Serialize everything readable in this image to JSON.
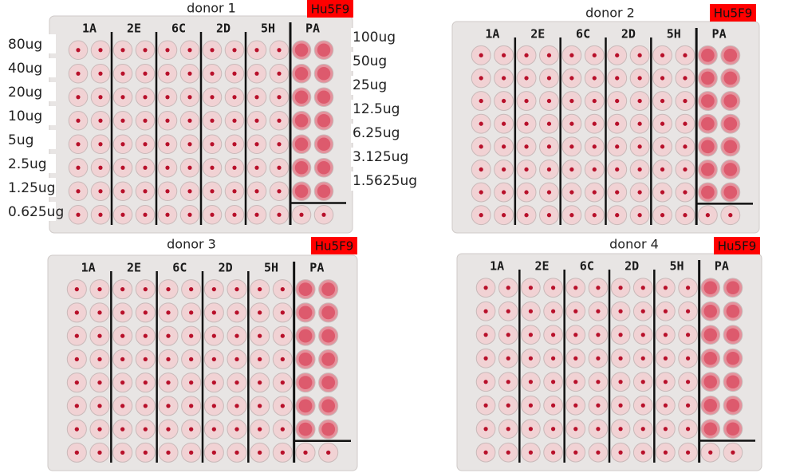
{
  "panels": [
    {
      "title": "donor 1",
      "tag": "Hu5F9",
      "column_labels": [
        "1A",
        "2E",
        "6C",
        "2D",
        "5H",
        "PA"
      ]
    },
    {
      "title": "donor 2",
      "tag": "Hu5F9",
      "column_labels": [
        "1A",
        "2E",
        "6C",
        "2D",
        "5H",
        "PA"
      ]
    },
    {
      "title": "donor 3",
      "tag": "Hu5F9",
      "column_labels": [
        "1A",
        "2E",
        "6C",
        "2D",
        "5H",
        "PA"
      ]
    },
    {
      "title": "donor 4",
      "tag": "Hu5F9",
      "column_labels": [
        "1A",
        "2E",
        "6C",
        "2D",
        "5H",
        "PA"
      ]
    }
  ],
  "left_labels": [
    "80ug",
    "40ug",
    "20ug",
    "10ug",
    "5ug",
    "2.5ug",
    "1.25ug",
    "0.625ug"
  ],
  "right_labels": [
    "100ug",
    "50ug",
    "25ug",
    "12.5ug",
    "6.25ug",
    "3.125ug",
    "1.5625ug"
  ]
}
